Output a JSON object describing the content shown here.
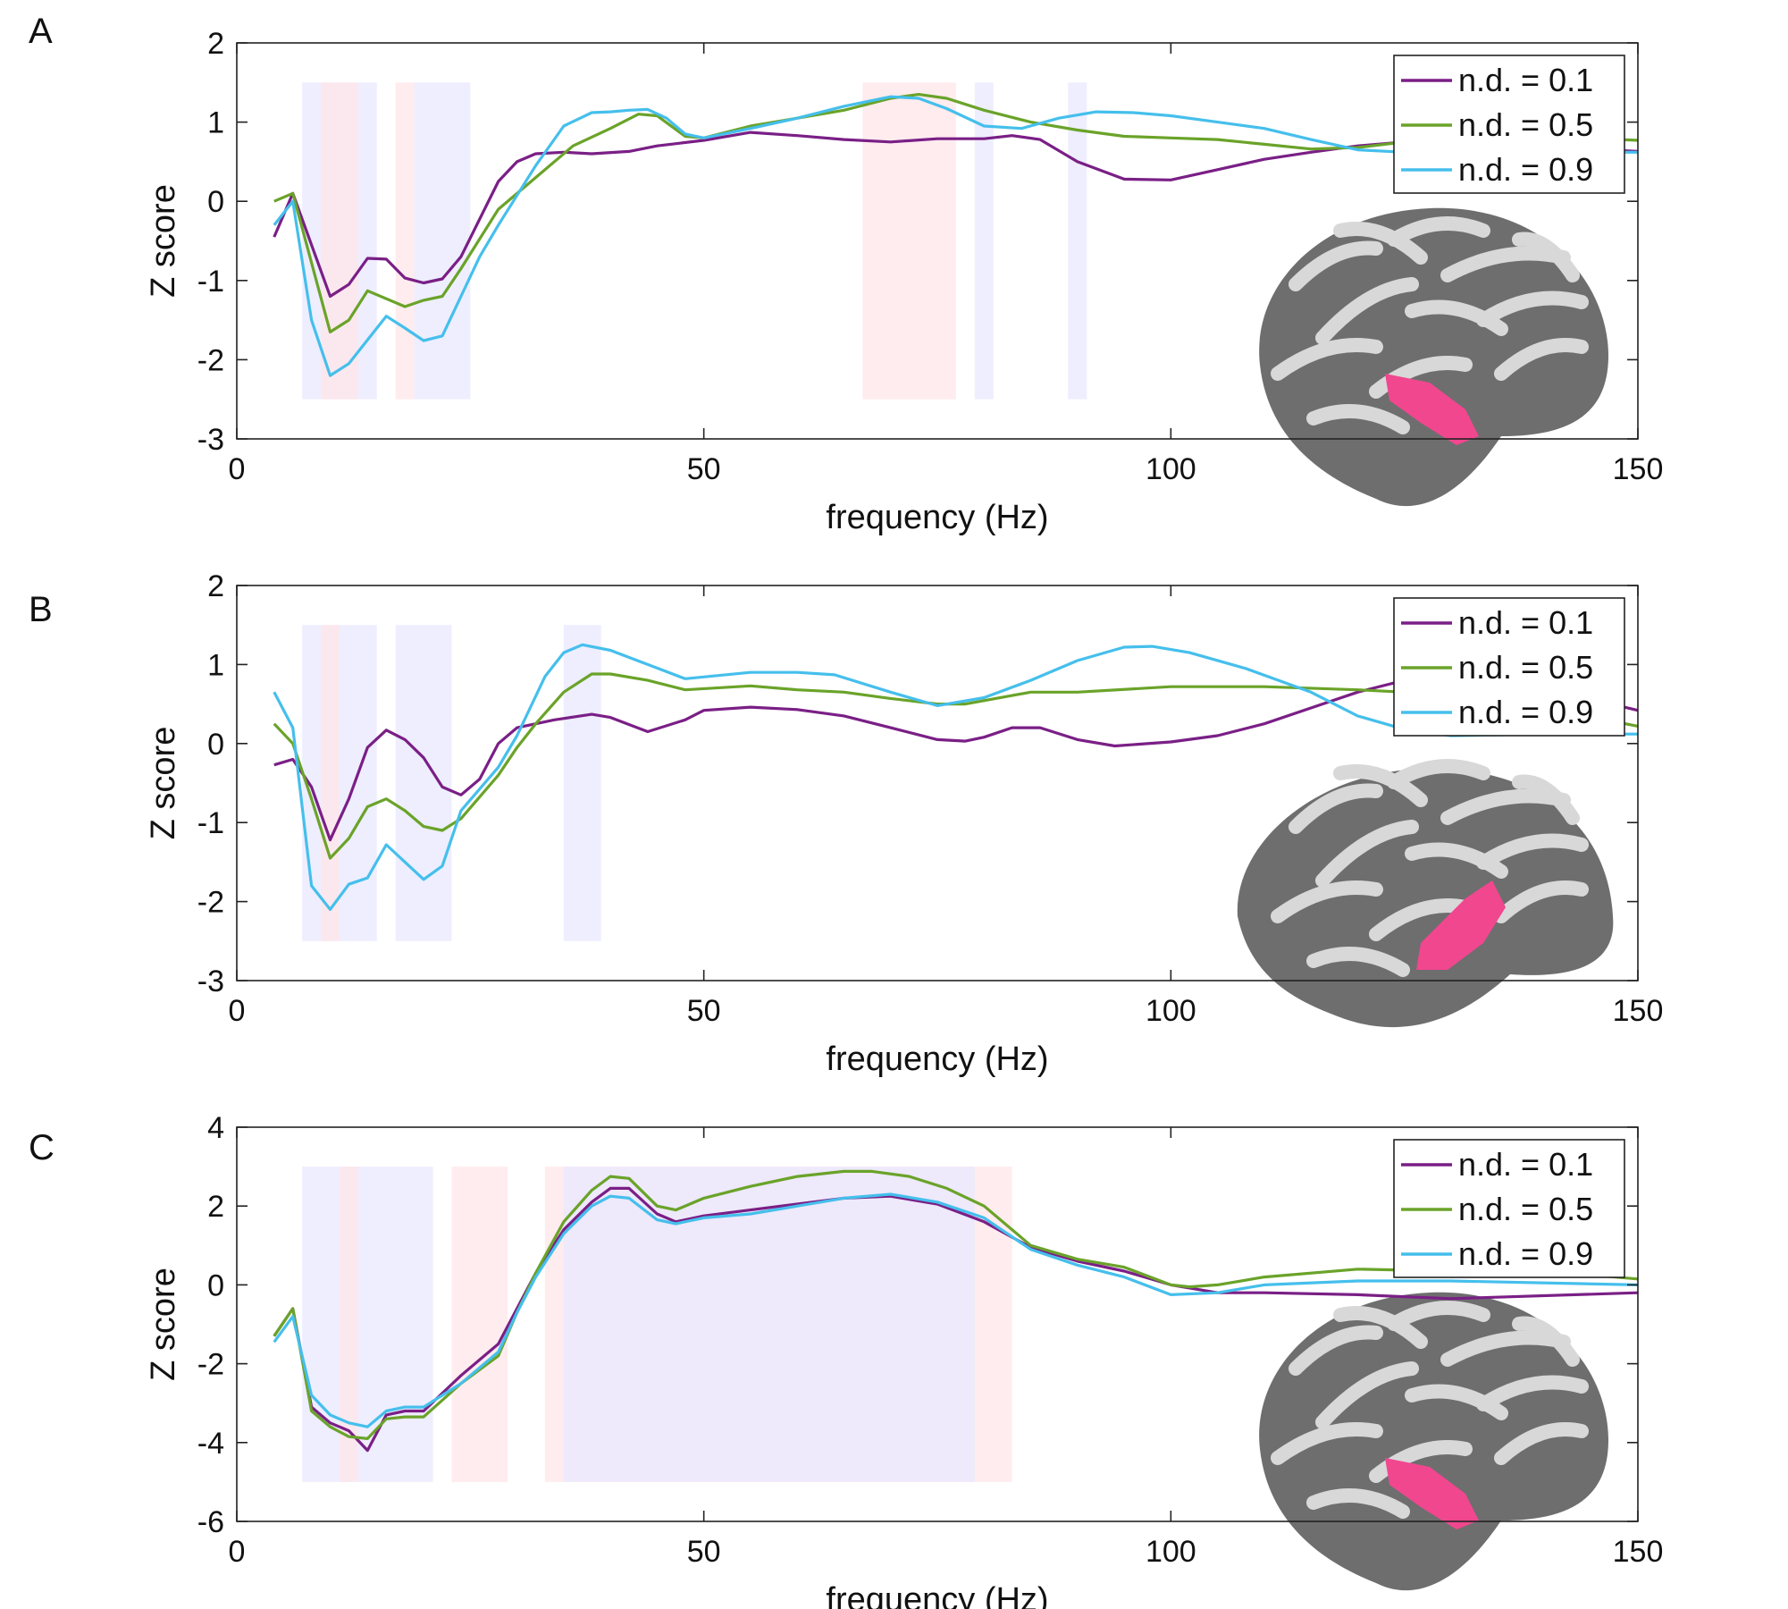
{
  "chart_data": [
    {
      "type": "line",
      "panel_label": "A",
      "xlabel": "frequency (Hz)",
      "ylabel": "Z score",
      "xlim": [
        0,
        150
      ],
      "ylim": [
        -3,
        2
      ],
      "xticks": [
        "0",
        "50",
        "100",
        "150"
      ],
      "yticks": [
        "2",
        "1",
        "0",
        "-1",
        "-2",
        "-3"
      ],
      "legend_position": "top-right",
      "shaded_regions": [
        {
          "color": "blue",
          "x": [
            7,
            15
          ],
          "y": [
            -2.5,
            1.5
          ]
        },
        {
          "color": "pink",
          "x": [
            9,
            13
          ],
          "y": [
            -2.5,
            1.5
          ]
        },
        {
          "color": "pink",
          "x": [
            17,
            19
          ],
          "y": [
            -2.5,
            1.5
          ]
        },
        {
          "color": "blue",
          "x": [
            19,
            25
          ],
          "y": [
            -2.5,
            1.5
          ]
        },
        {
          "color": "pink",
          "x": [
            67,
            77
          ],
          "y": [
            -2.5,
            1.5
          ]
        },
        {
          "color": "blue",
          "x": [
            79,
            81
          ],
          "y": [
            -2.5,
            1.5
          ]
        },
        {
          "color": "blue",
          "x": [
            89,
            91
          ],
          "y": [
            -2.5,
            1.5
          ]
        }
      ],
      "series": [
        {
          "name": "n.d. = 0.1",
          "color": "#7a1f86",
          "x": [
            4,
            6,
            10,
            12,
            14,
            16,
            18,
            20,
            22,
            24,
            28,
            30,
            32,
            35,
            38,
            42,
            45,
            50,
            55,
            60,
            65,
            70,
            75,
            80,
            83,
            86,
            90,
            95,
            100,
            105,
            110,
            115,
            120,
            125,
            130,
            135,
            140,
            145,
            150
          ],
          "y": [
            -0.45,
            0.1,
            -1.2,
            -1.05,
            -0.72,
            -0.73,
            -0.97,
            -1.03,
            -0.98,
            -0.7,
            0.25,
            0.5,
            0.6,
            0.62,
            0.6,
            0.63,
            0.7,
            0.77,
            0.87,
            0.83,
            0.78,
            0.75,
            0.79,
            0.79,
            0.83,
            0.78,
            0.5,
            0.28,
            0.27,
            0.4,
            0.53,
            0.62,
            0.7,
            0.75,
            0.72,
            0.7,
            0.68,
            0.66,
            0.63
          ]
        },
        {
          "name": "n.d. = 0.5",
          "color": "#6aa329",
          "x": [
            4,
            6,
            10,
            12,
            14,
            18,
            20,
            22,
            24,
            28,
            32,
            36,
            40,
            43,
            45,
            48,
            50,
            55,
            60,
            65,
            70,
            73,
            76,
            80,
            85,
            90,
            95,
            100,
            105,
            110,
            115,
            120,
            125,
            130,
            140,
            150
          ],
          "y": [
            0,
            0.1,
            -1.65,
            -1.5,
            -1.13,
            -1.33,
            -1.25,
            -1.2,
            -0.85,
            -0.1,
            0.3,
            0.7,
            0.92,
            1.1,
            1.08,
            0.82,
            0.8,
            0.95,
            1.05,
            1.15,
            1.3,
            1.35,
            1.3,
            1.15,
            1.0,
            0.9,
            0.82,
            0.8,
            0.78,
            0.72,
            0.66,
            0.68,
            0.75,
            0.8,
            0.82,
            0.77
          ]
        },
        {
          "name": "n.d. = 0.9",
          "color": "#45bfec",
          "x": [
            4,
            6,
            8,
            10,
            12,
            14,
            16,
            18,
            20,
            22,
            24,
            26,
            28,
            32,
            35,
            38,
            40,
            42,
            44,
            46,
            48,
            50,
            55,
            60,
            65,
            70,
            73,
            76,
            80,
            84,
            88,
            92,
            96,
            100,
            105,
            110,
            115,
            120,
            125,
            150
          ],
          "y": [
            -0.3,
            0,
            -1.5,
            -2.2,
            -2.05,
            -1.75,
            -1.45,
            -1.6,
            -1.76,
            -1.7,
            -1.2,
            -0.7,
            -0.3,
            0.45,
            0.95,
            1.12,
            1.13,
            1.15,
            1.16,
            1.05,
            0.85,
            0.8,
            0.92,
            1.05,
            1.2,
            1.32,
            1.3,
            1.17,
            0.95,
            0.92,
            1.05,
            1.13,
            1.12,
            1.08,
            1.0,
            0.92,
            0.78,
            0.65,
            0.62,
            0.62
          ]
        }
      ]
    },
    {
      "type": "line",
      "panel_label": "B",
      "xlabel": "frequency (Hz)",
      "ylabel": "Z score",
      "xlim": [
        0,
        150
      ],
      "ylim": [
        -3,
        2
      ],
      "xticks": [
        "0",
        "50",
        "100",
        "150"
      ],
      "yticks": [
        "2",
        "1",
        "0",
        "-1",
        "-2",
        "-3"
      ],
      "legend_position": "top-right",
      "shaded_regions": [
        {
          "color": "blue",
          "x": [
            7,
            15
          ],
          "y": [
            -2.5,
            1.5
          ]
        },
        {
          "color": "pink",
          "x": [
            9,
            11
          ],
          "y": [
            -2.5,
            1.5
          ]
        },
        {
          "color": "blue",
          "x": [
            17,
            23
          ],
          "y": [
            -2.5,
            1.5
          ]
        },
        {
          "color": "blue",
          "x": [
            35,
            39
          ],
          "y": [
            -2.5,
            1.5
          ]
        }
      ],
      "series": [
        {
          "name": "n.d. = 0.1",
          "color": "#7a1f86",
          "x": [
            4,
            6,
            8,
            10,
            12,
            14,
            16,
            18,
            20,
            22,
            24,
            26,
            28,
            30,
            34,
            38,
            40,
            44,
            48,
            50,
            55,
            60,
            65,
            70,
            75,
            78,
            80,
            83,
            86,
            90,
            94,
            100,
            105,
            110,
            115,
            120,
            125,
            130,
            140,
            150
          ],
          "y": [
            -0.27,
            -0.2,
            -0.55,
            -1.22,
            -0.7,
            -0.05,
            0.17,
            0.05,
            -0.18,
            -0.55,
            -0.65,
            -0.45,
            0,
            0.2,
            0.3,
            0.37,
            0.33,
            0.15,
            0.3,
            0.42,
            0.46,
            0.43,
            0.35,
            0.2,
            0.05,
            0.03,
            0.08,
            0.2,
            0.2,
            0.05,
            -0.03,
            0.02,
            0.1,
            0.25,
            0.45,
            0.65,
            0.8,
            0.85,
            0.7,
            0.42
          ]
        },
        {
          "name": "n.d. = 0.5",
          "color": "#6aa329",
          "x": [
            4,
            6,
            8,
            10,
            12,
            14,
            16,
            18,
            20,
            22,
            24,
            28,
            30,
            32,
            35,
            38,
            40,
            44,
            48,
            55,
            60,
            65,
            70,
            75,
            78,
            85,
            90,
            100,
            110,
            120,
            125,
            130,
            140,
            150
          ],
          "y": [
            0.25,
            0,
            -0.7,
            -1.45,
            -1.2,
            -0.8,
            -0.7,
            -0.85,
            -1.05,
            -1.1,
            -0.95,
            -0.4,
            -0.05,
            0.25,
            0.65,
            0.88,
            0.88,
            0.8,
            0.68,
            0.73,
            0.68,
            0.65,
            0.57,
            0.5,
            0.5,
            0.65,
            0.65,
            0.72,
            0.72,
            0.68,
            0.65,
            0.6,
            0.45,
            0.22
          ]
        },
        {
          "name": "n.d. = 0.9",
          "color": "#45bfec",
          "x": [
            4,
            6,
            8,
            10,
            12,
            14,
            16,
            18,
            20,
            22,
            24,
            28,
            30,
            33,
            35,
            37,
            40,
            44,
            48,
            55,
            60,
            64,
            70,
            75,
            80,
            85,
            90,
            95,
            98,
            102,
            108,
            115,
            120,
            125,
            130,
            140,
            150
          ],
          "y": [
            0.65,
            0.2,
            -1.8,
            -2.1,
            -1.78,
            -1.7,
            -1.28,
            -1.5,
            -1.72,
            -1.55,
            -0.85,
            -0.3,
            0.1,
            0.85,
            1.15,
            1.25,
            1.18,
            1.0,
            0.82,
            0.9,
            0.9,
            0.87,
            0.65,
            0.48,
            0.58,
            0.8,
            1.05,
            1.22,
            1.23,
            1.15,
            0.95,
            0.65,
            0.35,
            0.18,
            0.1,
            0.12,
            0.12
          ]
        }
      ]
    },
    {
      "type": "line",
      "panel_label": "C",
      "xlabel": "frequency (Hz)",
      "ylabel": "Z score",
      "xlim": [
        0,
        150
      ],
      "ylim": [
        -6,
        4
      ],
      "xticks": [
        "0",
        "50",
        "100",
        "150"
      ],
      "yticks": [
        "4",
        "2",
        "0",
        "-2",
        "-4",
        "-6"
      ],
      "legend_position": "top-right",
      "shaded_regions": [
        {
          "color": "blue",
          "x": [
            7,
            21
          ],
          "y": [
            -5,
            3
          ]
        },
        {
          "color": "pink",
          "x": [
            11,
            13
          ],
          "y": [
            -5,
            3
          ]
        },
        {
          "color": "pink",
          "x": [
            23,
            29
          ],
          "y": [
            -5,
            3
          ]
        },
        {
          "color": "pink",
          "x": [
            33,
            83
          ],
          "y": [
            -5,
            3
          ]
        },
        {
          "color": "blue",
          "x": [
            35,
            79
          ],
          "y": [
            -5,
            3
          ]
        }
      ],
      "series": [
        {
          "name": "n.d. = 0.1",
          "color": "#7a1f86",
          "x": [
            4,
            6,
            8,
            10,
            12,
            14,
            16,
            18,
            20,
            24,
            28,
            30,
            32,
            35,
            38,
            40,
            42,
            45,
            47,
            50,
            55,
            60,
            65,
            70,
            75,
            80,
            85,
            90,
            95,
            100,
            105,
            110,
            120,
            130,
            150
          ],
          "y": [
            -1.3,
            -0.6,
            -3.1,
            -3.5,
            -3.7,
            -4.2,
            -3.3,
            -3.2,
            -3.2,
            -2.3,
            -1.5,
            -0.6,
            0.3,
            1.4,
            2.1,
            2.45,
            2.45,
            1.8,
            1.6,
            1.75,
            1.9,
            2.05,
            2.2,
            2.25,
            2.05,
            1.6,
            0.95,
            0.6,
            0.35,
            0,
            -0.2,
            -0.2,
            -0.25,
            -0.35,
            -0.2
          ]
        },
        {
          "name": "n.d. = 0.5",
          "color": "#6aa329",
          "x": [
            4,
            6,
            8,
            10,
            12,
            14,
            16,
            18,
            20,
            24,
            28,
            30,
            32,
            35,
            38,
            40,
            42,
            45,
            47,
            50,
            55,
            60,
            65,
            68,
            72,
            76,
            80,
            85,
            90,
            95,
            100,
            102,
            105,
            110,
            120,
            130,
            140,
            150
          ],
          "y": [
            -1.3,
            -0.6,
            -3.2,
            -3.6,
            -3.85,
            -3.9,
            -3.4,
            -3.35,
            -3.35,
            -2.5,
            -1.8,
            -0.7,
            0.3,
            1.6,
            2.4,
            2.75,
            2.7,
            2.0,
            1.9,
            2.2,
            2.5,
            2.75,
            2.88,
            2.88,
            2.75,
            2.45,
            2.0,
            1.0,
            0.65,
            0.45,
            0,
            -0.05,
            0,
            0.2,
            0.4,
            0.35,
            0.35,
            0.15
          ]
        },
        {
          "name": "n.d. = 0.9",
          "color": "#45bfec",
          "x": [
            4,
            6,
            8,
            10,
            12,
            14,
            16,
            18,
            20,
            24,
            28,
            30,
            32,
            35,
            38,
            40,
            42,
            45,
            47,
            50,
            55,
            60,
            65,
            70,
            75,
            80,
            85,
            90,
            95,
            100,
            105,
            110,
            120,
            130,
            150
          ],
          "y": [
            -1.45,
            -0.8,
            -2.8,
            -3.3,
            -3.5,
            -3.6,
            -3.2,
            -3.1,
            -3.1,
            -2.5,
            -1.7,
            -0.7,
            0.2,
            1.3,
            2.0,
            2.25,
            2.2,
            1.65,
            1.55,
            1.7,
            1.8,
            2.0,
            2.2,
            2.3,
            2.1,
            1.7,
            0.9,
            0.5,
            0.2,
            -0.25,
            -0.2,
            0,
            0.1,
            0.1,
            0.0
          ]
        }
      ]
    }
  ],
  "colors": {
    "shade_blue": "#e8e8ff",
    "shade_pink": "#ffe6e8",
    "brain_dark": "#6e6e6e",
    "brain_light": "#d8d8d8",
    "roi": "#f0478f"
  }
}
